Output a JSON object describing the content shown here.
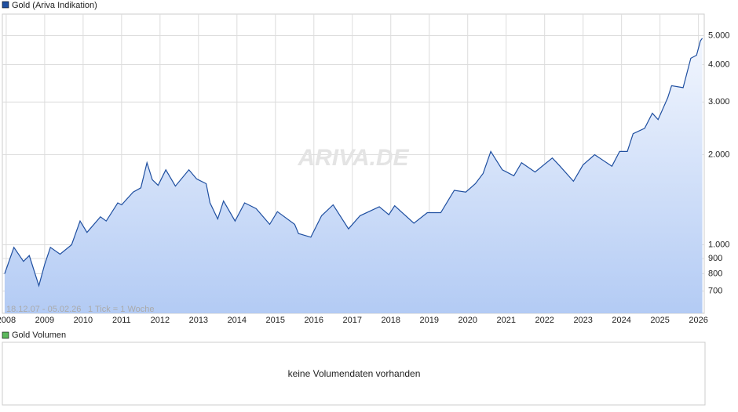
{
  "chart_data": {
    "type": "line",
    "log_y": true,
    "grid": true,
    "legend": "top-left",
    "watermark": "ARIVA.DE",
    "date_range": "18.12.07 - 05.02.26",
    "tick_note": "1 Tick = 1 Woche",
    "x": [
      2007.96,
      2008.2,
      2008.45,
      2008.6,
      2008.85,
      2009.0,
      2009.15,
      2009.4,
      2009.7,
      2009.92,
      2010.1,
      2010.45,
      2010.6,
      2010.9,
      2011.0,
      2011.3,
      2011.5,
      2011.66,
      2011.8,
      2011.95,
      2012.15,
      2012.4,
      2012.75,
      2012.95,
      2013.2,
      2013.3,
      2013.5,
      2013.65,
      2013.95,
      2014.2,
      2014.5,
      2014.85,
      2015.05,
      2015.5,
      2015.6,
      2015.92,
      2016.2,
      2016.5,
      2016.9,
      2017.2,
      2017.7,
      2017.95,
      2018.1,
      2018.6,
      2018.95,
      2019.3,
      2019.65,
      2019.95,
      2020.2,
      2020.4,
      2020.6,
      2020.9,
      2021.2,
      2021.4,
      2021.75,
      2022.2,
      2022.4,
      2022.75,
      2023.0,
      2023.3,
      2023.75,
      2023.95,
      2024.15,
      2024.3,
      2024.6,
      2024.8,
      2024.95,
      2025.2,
      2025.3,
      2025.6,
      2025.8,
      2025.95,
      2026.05,
      2026.1
    ],
    "series": [
      {
        "name": "Gold (Ariva Indikation)",
        "color": "#1f4fa0",
        "values": [
          800,
          980,
          880,
          920,
          730,
          860,
          980,
          930,
          1000,
          1200,
          1100,
          1240,
          1200,
          1380,
          1360,
          1500,
          1550,
          1880,
          1650,
          1580,
          1780,
          1570,
          1780,
          1660,
          1600,
          1380,
          1220,
          1400,
          1200,
          1380,
          1320,
          1170,
          1290,
          1170,
          1090,
          1060,
          1250,
          1360,
          1130,
          1250,
          1340,
          1260,
          1350,
          1180,
          1280,
          1280,
          1520,
          1500,
          1600,
          1730,
          2050,
          1780,
          1700,
          1880,
          1750,
          1950,
          1830,
          1630,
          1850,
          2000,
          1830,
          2050,
          2050,
          2350,
          2450,
          2750,
          2620,
          3100,
          3400,
          3350,
          4200,
          4300,
          4800,
          4900
        ]
      }
    ],
    "xlim": [
      2007.9,
      2026.15
    ],
    "xticks": [
      2008,
      2009,
      2010,
      2011,
      2012,
      2013,
      2014,
      2015,
      2016,
      2017,
      2018,
      2019,
      2020,
      2021,
      2022,
      2023,
      2024,
      2025,
      2026
    ],
    "ylim": [
      590,
      5900
    ],
    "yticks": [
      700,
      800,
      900,
      {
        "value": 1000,
        "label": "1.000"
      },
      {
        "value": 2000,
        "label": "2.000"
      },
      {
        "value": 3000,
        "label": "3.000"
      },
      {
        "value": 4000,
        "label": "4.000"
      },
      {
        "value": 5000,
        "label": "5.000"
      }
    ]
  },
  "volume_panel": {
    "legend": "Gold Volumen",
    "color": "#5cb85c",
    "message": "keine Volumendaten vorhanden"
  }
}
